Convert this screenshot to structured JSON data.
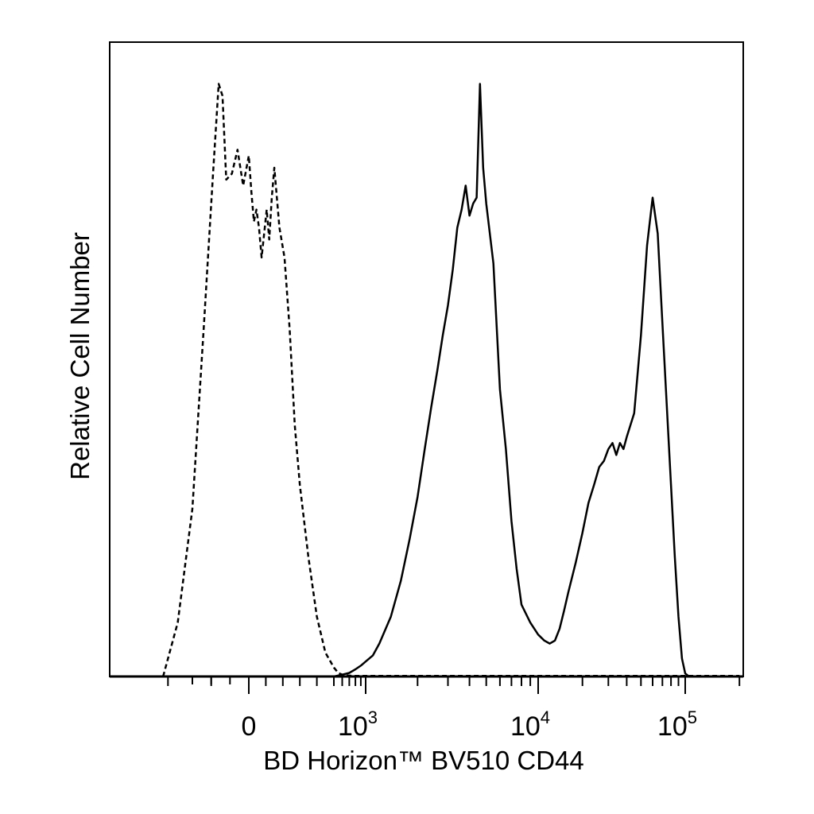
{
  "chart_data": {
    "type": "line",
    "title": "",
    "xlabel": "BD Horizon™ BV510 CD44",
    "ylabel": "Relative Cell Number",
    "x_scale": "biexponential",
    "x_ticks": [
      {
        "value": 0,
        "label": "0"
      },
      {
        "value": 1000,
        "label": "10",
        "exponent": "3"
      },
      {
        "value": 10000,
        "label": "10",
        "exponent": "4"
      },
      {
        "value": 100000,
        "label": "10",
        "exponent": "5"
      }
    ],
    "xlim": [
      -300,
      210000
    ],
    "ylim": [
      0,
      100
    ],
    "grid": false,
    "legend": "none",
    "series": [
      {
        "style": "dashed",
        "color": "#000000",
        "x": [
          -210,
          -180,
          -150,
          -120,
          -95,
          -80,
          -70,
          -60,
          -45,
          -30,
          -15,
          0,
          15,
          30,
          45,
          60,
          75,
          90,
          105,
          120,
          135,
          150,
          180,
          210,
          240,
          270,
          300,
          350,
          400,
          450,
          500,
          550,
          600,
          650,
          700,
          750,
          800,
          850,
          900,
          1000,
          1200,
          1500,
          2000,
          3000,
          5000,
          10000,
          20000,
          50000,
          100000,
          200000
        ],
        "y": [
          0,
          9,
          28,
          58,
          84,
          99,
          97,
          83,
          84,
          88,
          82,
          87,
          81,
          76,
          78,
          75,
          70,
          74,
          78,
          73,
          80,
          85,
          75,
          70,
          58,
          42,
          32,
          20,
          10,
          4,
          1.5,
          0.6,
          0.3,
          0.2,
          0.15,
          0.1,
          0.1,
          0.1,
          0.1,
          0.1,
          0.1,
          0.1,
          0.1,
          0.1,
          0.1,
          0.1,
          0.1,
          0.1,
          0.1,
          0.1
        ]
      },
      {
        "style": "solid",
        "color": "#000000",
        "x": [
          500,
          600,
          700,
          800,
          900,
          1000,
          1100,
          1200,
          1400,
          1600,
          1800,
          2000,
          2200,
          2400,
          2600,
          2800,
          3000,
          3200,
          3400,
          3600,
          3800,
          4000,
          4200,
          4400,
          4600,
          4800,
          5000,
          5500,
          6000,
          6500,
          7000,
          7500,
          8000,
          9000,
          10000,
          11000,
          12000,
          13000,
          14000,
          15000,
          16000,
          18000,
          20000,
          22000,
          24000,
          26000,
          28000,
          30000,
          32000,
          34000,
          36000,
          38000,
          40000,
          45000,
          50000,
          55000,
          60000,
          65000,
          70000,
          75000,
          80000,
          85000,
          90000,
          95000,
          100000,
          105000
        ],
        "y": [
          0,
          0.3,
          0.6,
          1.2,
          1.8,
          2.5,
          3.5,
          5.5,
          10,
          16,
          23,
          30,
          38,
          45,
          51,
          57,
          62,
          68,
          75,
          78,
          82,
          77,
          79,
          80,
          99,
          85,
          79,
          69,
          48,
          38,
          26,
          18,
          12,
          9,
          7,
          6,
          5.5,
          6,
          8,
          11,
          14,
          19,
          24,
          29,
          32,
          35,
          36,
          38,
          39,
          37,
          39,
          38,
          40,
          44,
          57,
          72,
          80,
          74,
          59,
          45,
          32,
          20,
          10,
          3,
          0.5,
          0
        ]
      }
    ]
  }
}
